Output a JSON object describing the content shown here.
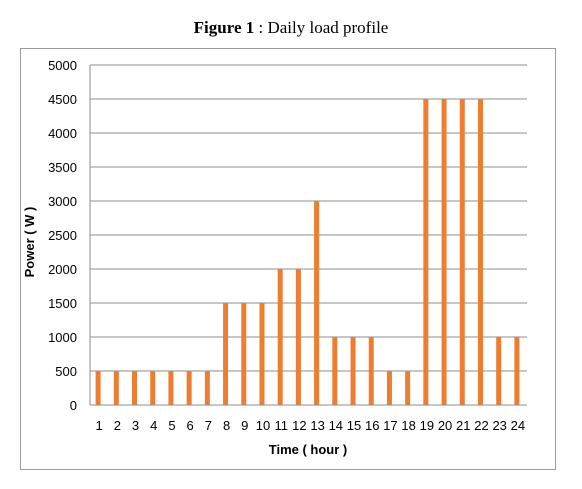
{
  "figure": {
    "label": "Figure 1",
    "sep": " : ",
    "caption": "Daily load profile"
  },
  "chart_data": {
    "type": "bar",
    "title": "Figure 1 : Daily load profile",
    "xlabel": "Time  ( hour )",
    "ylabel": "Power ( W )",
    "ylim": [
      0,
      5000
    ],
    "yticks": [
      0,
      500,
      1000,
      1500,
      2000,
      2500,
      3000,
      3500,
      4000,
      4500,
      5000
    ],
    "grid": true,
    "legend": "none",
    "categories": [
      "1",
      "2",
      "3",
      "4",
      "5",
      "6",
      "7",
      "8",
      "9",
      "10",
      "11",
      "12",
      "13",
      "14",
      "15",
      "16",
      "17",
      "18",
      "19",
      "20",
      "21",
      "22",
      "23",
      "24"
    ],
    "series": [
      {
        "color": "#ED7D31",
        "values": [
          500,
          500,
          500,
          500,
          500,
          500,
          500,
          1500,
          1500,
          1500,
          2000,
          2000,
          3000,
          1000,
          1000,
          1000,
          500,
          500,
          4500,
          4500,
          4500,
          4500,
          1000,
          1000
        ]
      }
    ]
  }
}
